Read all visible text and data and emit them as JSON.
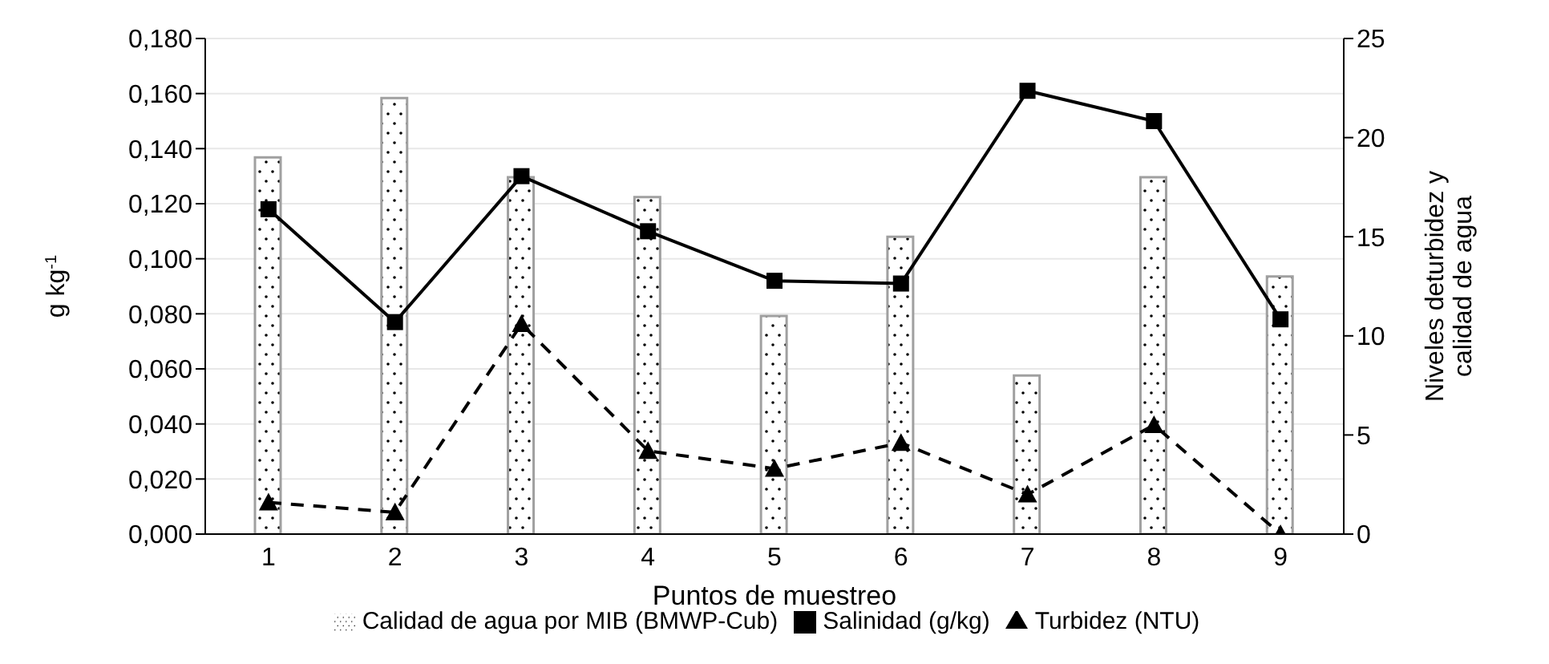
{
  "chart_data": {
    "type": "bar",
    "xlabel": "Puntos de muestreo",
    "ylabel": "g kg$^{-1}$",
    "y2label": "Niveles deturbidez y calidad de agua",
    "categories": [
      "1",
      "2",
      "3",
      "4",
      "5",
      "6",
      "7",
      "8",
      "9"
    ],
    "series": [
      {
        "name": "Calidad de agua por MIB (BMWP-Cub)",
        "axis": "y2",
        "color": "#a0a0a0",
        "values": [
          19,
          22,
          18,
          17,
          11,
          15,
          8,
          18,
          13
        ]
      },
      {
        "name": "Salinidad (g/kg)",
        "type": "line",
        "color": "#000000",
        "marker": "square",
        "line_style": "solid",
        "values": [
          0.118,
          0.077,
          0.13,
          0.11,
          0.092,
          0.091,
          0.161,
          0.15,
          0.078
        ]
      },
      {
        "name": "Turbidez (NTU)",
        "type": "line",
        "axis": "y2",
        "color": "#000000",
        "marker": "triangle",
        "line_style": "dashed",
        "values": [
          1.6,
          1.1,
          10.6,
          4.2,
          3.3,
          4.6,
          2.0,
          5.5,
          0
        ]
      }
    ],
    "ylim": [
      0,
      0.18
    ],
    "yticks": [
      {
        "value": 0,
        "label": "0,000"
      },
      {
        "value": 0.02,
        "label": "0,020"
      },
      {
        "value": 0.04,
        "label": "0,040"
      },
      {
        "value": 0.06,
        "label": "0,060"
      },
      {
        "value": 0.08,
        "label": "0,080"
      },
      {
        "value": 0.1,
        "label": "0,100"
      },
      {
        "value": 0.12,
        "label": "0,120"
      },
      {
        "value": 0.14,
        "label": "0,140"
      },
      {
        "value": 0.16,
        "label": "0,160"
      },
      {
        "value": 0.18,
        "label": "0,180"
      }
    ],
    "y2lim": [
      0,
      25
    ],
    "y2ticks": [
      0,
      5,
      10,
      15,
      20,
      25
    ],
    "grid": "y",
    "legend": "bottom"
  }
}
